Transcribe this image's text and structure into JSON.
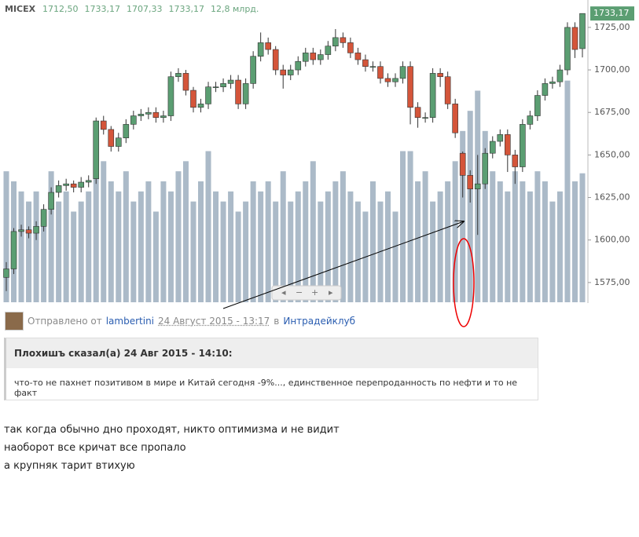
{
  "chart_data": {
    "type": "candlestick",
    "title": "MICEX",
    "header_labels": [
      "1712,50",
      "1733,17",
      "1707,33",
      "1733,17",
      "12,8 млрд."
    ],
    "open": [
      1578,
      1583,
      1605,
      1606,
      1604,
      1608,
      1618,
      1628,
      1632,
      1633,
      1631,
      1634,
      1636,
      1670,
      1665,
      1655,
      1660,
      1668,
      1673,
      1674,
      1675,
      1672,
      1673,
      1696,
      1698,
      1688,
      1678,
      1680,
      1690,
      1690,
      1692,
      1694,
      1680,
      1692,
      1708,
      1716,
      1712,
      1700,
      1697,
      1700,
      1705,
      1710,
      1706,
      1709,
      1714,
      1719,
      1716,
      1710,
      1706,
      1702,
      1702,
      1695,
      1693,
      1695,
      1702,
      1678,
      1672,
      1672,
      1698,
      1696,
      1680,
      1651,
      1638,
      1630,
      1633,
      1651,
      1658,
      1662,
      1650,
      1643,
      1668,
      1673,
      1685,
      1692,
      1693,
      1700,
      1725,
      1712.5
    ],
    "high": [
      1587,
      1607,
      1609,
      1608,
      1611,
      1621,
      1631,
      1635,
      1636,
      1635,
      1637,
      1638,
      1672,
      1673,
      1667,
      1663,
      1671,
      1676,
      1677,
      1678,
      1678,
      1676,
      1699,
      1701,
      1700,
      1690,
      1683,
      1693,
      1693,
      1695,
      1697,
      1697,
      1695,
      1711,
      1722,
      1719,
      1714,
      1703,
      1703,
      1708,
      1713,
      1713,
      1712,
      1717,
      1724,
      1722,
      1719,
      1713,
      1709,
      1705,
      1705,
      1698,
      1698,
      1705,
      1705,
      1681,
      1675,
      1701,
      1701,
      1699,
      1683,
      1652,
      1641,
      1650,
      1654,
      1661,
      1665,
      1665,
      1653,
      1671,
      1676,
      1688,
      1695,
      1696,
      1703,
      1728,
      1728,
      1733.17
    ],
    "low": [
      1570,
      1580,
      1602,
      1601,
      1600,
      1605,
      1615,
      1625,
      1629,
      1628,
      1628,
      1631,
      1633,
      1662,
      1652,
      1652,
      1657,
      1665,
      1670,
      1671,
      1669,
      1669,
      1670,
      1693,
      1685,
      1675,
      1675,
      1677,
      1687,
      1687,
      1689,
      1677,
      1677,
      1689,
      1705,
      1709,
      1697,
      1689,
      1694,
      1697,
      1702,
      1703,
      1703,
      1706,
      1711,
      1713,
      1707,
      1703,
      1699,
      1699,
      1692,
      1690,
      1690,
      1692,
      1668,
      1666,
      1669,
      1669,
      1690,
      1677,
      1660,
      1625,
      1622,
      1603,
      1630,
      1648,
      1655,
      1640,
      1633,
      1640,
      1665,
      1670,
      1682,
      1689,
      1690,
      1697,
      1707,
      1707.33
    ],
    "close": [
      1583,
      1605,
      1606,
      1604,
      1608,
      1618,
      1628,
      1632,
      1633,
      1631,
      1634,
      1635,
      1670,
      1665,
      1655,
      1660,
      1668,
      1673,
      1674,
      1675,
      1672,
      1673,
      1696,
      1698,
      1688,
      1678,
      1680,
      1690,
      1690,
      1692,
      1694,
      1680,
      1692,
      1708,
      1716,
      1712,
      1700,
      1697,
      1700,
      1705,
      1710,
      1706,
      1709,
      1714,
      1719,
      1716,
      1710,
      1706,
      1702,
      1702,
      1695,
      1693,
      1695,
      1702,
      1678,
      1672,
      1672,
      1698,
      1696,
      1680,
      1663,
      1638,
      1630,
      1633,
      1651,
      1658,
      1662,
      1650,
      1643,
      1668,
      1673,
      1685,
      1692,
      1693,
      1700,
      1725,
      1712,
      1733.17
    ],
    "volume": [
      13,
      12,
      11,
      10,
      11,
      9,
      13,
      10,
      11,
      9,
      10,
      11,
      18,
      14,
      12,
      11,
      13,
      10,
      11,
      12,
      9,
      12,
      11,
      13,
      14,
      10,
      12,
      15,
      11,
      10,
      11,
      9,
      10,
      12,
      11,
      12,
      10,
      13,
      10,
      11,
      12,
      14,
      10,
      11,
      12,
      13,
      11,
      10,
      9,
      12,
      10,
      11,
      9,
      15,
      15,
      12,
      13,
      10,
      11,
      12,
      14,
      17,
      19,
      21,
      17,
      13,
      12,
      11,
      13,
      12,
      11,
      13,
      12,
      10,
      11,
      22,
      12,
      12.8
    ],
    "volume_lim": [
      0,
      30
    ],
    "ylim": [
      1563.4,
      1741.1
    ],
    "yticks": [
      {
        "value": 1575,
        "label": "1575,00"
      },
      {
        "value": 1600,
        "label": "1600,00"
      },
      {
        "value": 1625,
        "label": "1625,00"
      },
      {
        "value": 1650,
        "label": "1650,00"
      },
      {
        "value": 1675,
        "label": "1675,00"
      },
      {
        "value": 1700,
        "label": "1700,00"
      },
      {
        "value": 1725,
        "label": "1725,00"
      }
    ],
    "last_label": "1733,17",
    "up_color": "#5b9e72",
    "down_color": "#d4553a",
    "volume_color": "#abbac8"
  },
  "post": {
    "sent_from": "Отправлено от",
    "author": "lambertini",
    "date": "24 Август 2015 - 13:17",
    "in": "в",
    "forum": "Интрадейклуб",
    "quote_header": "Плохишъ сказал(а) 24 Авг 2015 - 14:10:",
    "quote_text": "что-то не пахнет позитивом в мире и Китай сегодня -9%..., единственное перепроданность по нефти и то не факт",
    "lines": [
      "так когда обычно дно проходят, никто оптимизма и не видит",
      "наоборот все кричат все пропало",
      "а крупняк тарит втихую"
    ]
  }
}
